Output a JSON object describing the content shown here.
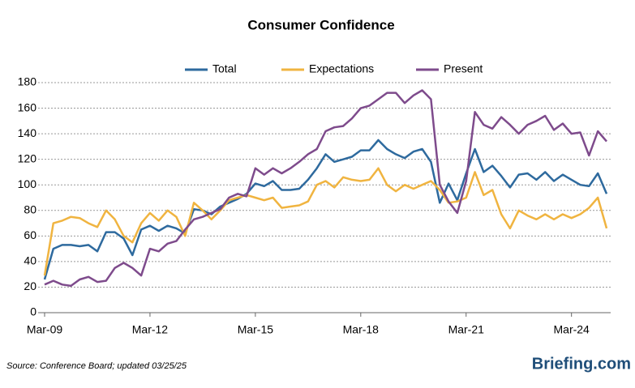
{
  "chart_data": {
    "type": "line",
    "title": "Consumer Confidence",
    "categories": [
      "Mar-09",
      null,
      null,
      null,
      null,
      null,
      null,
      null,
      null,
      null,
      null,
      null,
      "Mar-12",
      null,
      null,
      null,
      null,
      null,
      null,
      null,
      null,
      null,
      null,
      null,
      "Mar-15",
      null,
      null,
      null,
      null,
      null,
      null,
      null,
      null,
      null,
      null,
      null,
      "Mar-18",
      null,
      null,
      null,
      null,
      null,
      null,
      null,
      null,
      null,
      null,
      null,
      "Mar-21",
      null,
      null,
      null,
      null,
      null,
      null,
      null,
      null,
      null,
      null,
      null,
      "Mar-24",
      null,
      null,
      null,
      null
    ],
    "series": [
      {
        "name": "Total",
        "color": "#2e6a9e",
        "values": [
          26,
          50,
          53,
          53,
          52,
          53,
          48,
          63,
          63,
          58,
          45,
          65,
          68,
          64,
          68,
          66,
          62,
          81,
          80,
          77,
          83,
          86,
          89,
          93,
          101,
          99,
          103,
          96,
          96,
          97,
          104,
          113,
          124,
          118,
          120,
          122,
          127,
          127,
          135,
          128,
          124,
          121,
          126,
          128,
          118,
          86,
          101,
          88,
          109,
          128,
          110,
          115,
          107,
          98,
          108,
          109,
          104,
          110,
          103,
          108,
          104,
          100,
          99,
          109,
          93
        ]
      },
      {
        "name": "Expectations",
        "color": "#f0b440",
        "values": [
          29,
          70,
          72,
          75,
          74,
          70,
          67,
          80,
          73,
          60,
          55,
          70,
          78,
          72,
          80,
          75,
          60,
          86,
          80,
          73,
          80,
          88,
          90,
          92,
          90,
          88,
          90,
          82,
          83,
          84,
          87,
          100,
          103,
          98,
          106,
          104,
          103,
          104,
          113,
          100,
          95,
          100,
          97,
          100,
          103,
          96,
          86,
          87,
          90,
          110,
          92,
          96,
          77,
          66,
          80,
          76,
          73,
          77,
          73,
          77,
          74,
          77,
          82,
          90,
          66
        ]
      },
      {
        "name": "Present",
        "color": "#7e4b8c",
        "values": [
          22,
          25,
          22,
          21,
          26,
          28,
          24,
          25,
          35,
          39,
          35,
          29,
          50,
          48,
          54,
          56,
          65,
          73,
          75,
          78,
          81,
          90,
          93,
          91,
          113,
          108,
          113,
          109,
          113,
          118,
          124,
          128,
          142,
          145,
          146,
          152,
          160,
          162,
          167,
          172,
          172,
          164,
          170,
          174,
          167,
          100,
          87,
          78,
          103,
          157,
          147,
          144,
          153,
          147,
          140,
          147,
          150,
          154,
          143,
          148,
          140,
          141,
          123,
          142,
          134
        ]
      }
    ],
    "ylim": [
      0,
      180
    ],
    "yticks": [
      0,
      20,
      40,
      60,
      80,
      100,
      120,
      140,
      160,
      180
    ],
    "grid": true,
    "legend": "top",
    "source": "Source: Conference Board; updated 03/25/25",
    "logo": "Briefing.com"
  }
}
